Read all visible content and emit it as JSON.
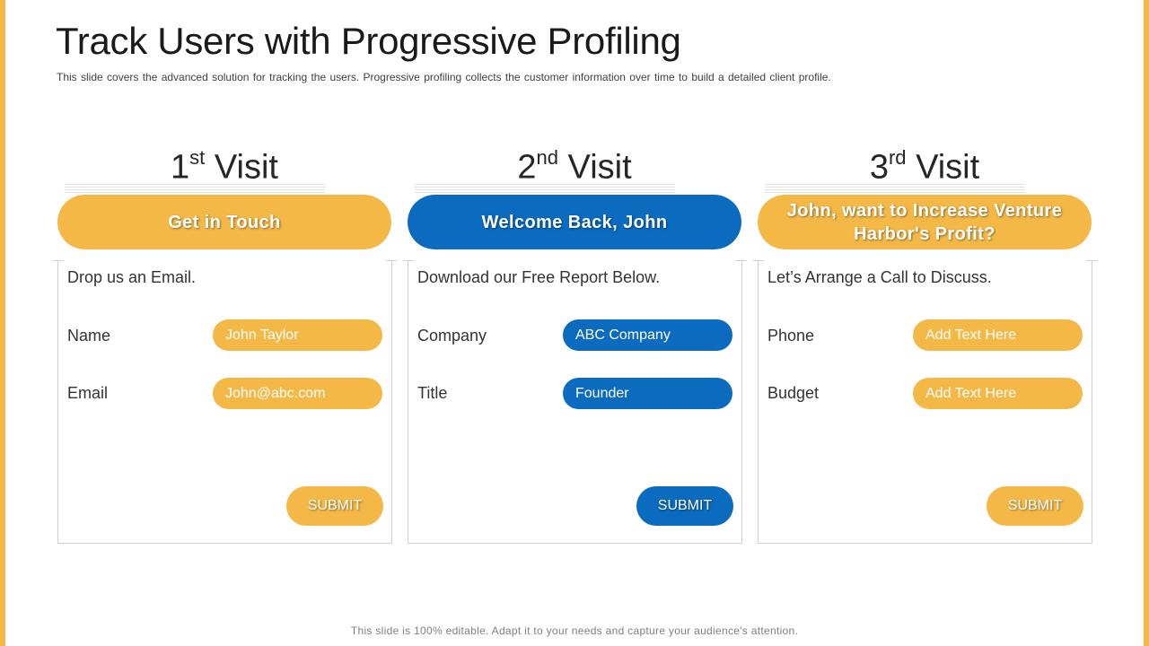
{
  "colors": {
    "accent": "#F4B847",
    "primary": "#0A6BBF"
  },
  "slide": {
    "title": "Track Users with Progressive Profiling",
    "subtitle": "This slide covers the advanced  solution for tracking the users. Progressive  profiling collects the customer information  over time to build a detailed client profile.",
    "footer": "This slide is 100% editable. Adapt it to your needs and capture your audience's attention."
  },
  "visits": [
    {
      "ordinal": "1",
      "suffix": "st",
      "word": "Visit",
      "heading": "Get in Touch",
      "intro": "Drop us an Email.",
      "fields": [
        {
          "label": "Name",
          "value": "John Taylor"
        },
        {
          "label": "Email",
          "value": "John@abc.com"
        }
      ],
      "submit_label": "SUBMIT"
    },
    {
      "ordinal": "2",
      "suffix": "nd",
      "word": "Visit",
      "heading": "Welcome Back, John",
      "intro": "Download our Free Report Below.",
      "fields": [
        {
          "label": "Company",
          "value": "ABC Company"
        },
        {
          "label": "Title",
          "value": "Founder"
        }
      ],
      "submit_label": "SUBMIT"
    },
    {
      "ordinal": "3",
      "suffix": "rd",
      "word": "Visit",
      "heading": "John, want to Increase Venture Harbor's Profit?",
      "intro": "Let’s Arrange a Call to Discuss.",
      "fields": [
        {
          "label": "Phone",
          "value": "Add Text Here"
        },
        {
          "label": "Budget",
          "value": "Add Text Here"
        }
      ],
      "submit_label": "SUBMIT"
    }
  ]
}
